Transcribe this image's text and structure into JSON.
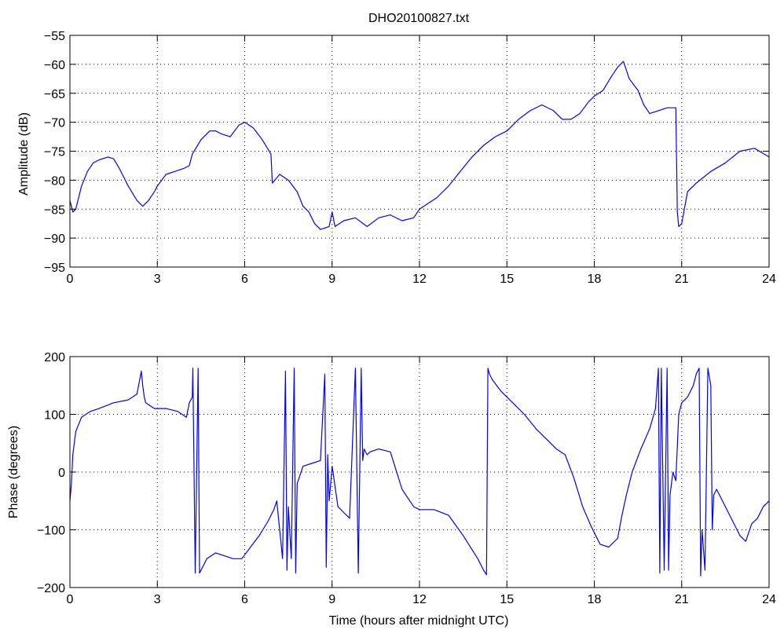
{
  "figure_title": "DHO20100827.txt",
  "chart_data": [
    {
      "type": "line",
      "title": "DHO20100827.txt",
      "xlabel": "",
      "ylabel": "Amplitude (dB)",
      "xlim": [
        0,
        24
      ],
      "ylim": [
        -95,
        -55
      ],
      "xticks": [
        0,
        3,
        6,
        9,
        12,
        15,
        18,
        21,
        24
      ],
      "yticks": [
        -95,
        -90,
        -85,
        -80,
        -75,
        -70,
        -65,
        -60,
        -55
      ],
      "grid": true,
      "line_color": "#0000ff",
      "series": [
        {
          "x": [
            0.0,
            0.1,
            0.2,
            0.4,
            0.6,
            0.8,
            1.0,
            1.3,
            1.5,
            1.7,
            2.0,
            2.3,
            2.5,
            2.7,
            2.9,
            3.0,
            3.3,
            3.6,
            3.9,
            4.1,
            4.2,
            4.5,
            4.8,
            5.0,
            5.2,
            5.5,
            5.8,
            6.0,
            6.3,
            6.6,
            6.9,
            6.95,
            7.2,
            7.5,
            7.8,
            8.0,
            8.2,
            8.4,
            8.6,
            8.9,
            9.0,
            9.1,
            9.4,
            9.8,
            10.2,
            10.6,
            11.0,
            11.4,
            11.8,
            12.0,
            12.3,
            12.6,
            13.0,
            13.4,
            13.8,
            14.2,
            14.6,
            15.0,
            15.4,
            15.8,
            16.2,
            16.6,
            16.9,
            17.2,
            17.5,
            17.8,
            18.0,
            18.3,
            18.6,
            18.8,
            18.9,
            19.0,
            19.2,
            19.5,
            19.7,
            19.9,
            20.2,
            20.5,
            20.8,
            20.85,
            20.9,
            21.0,
            21.2,
            21.5,
            22.0,
            22.5,
            23.0,
            23.5,
            24.0
          ],
          "values": [
            -83.5,
            -85.5,
            -85,
            -81,
            -78.5,
            -77,
            -76.5,
            -76,
            -76.3,
            -78,
            -81,
            -83.5,
            -84.5,
            -83.5,
            -82,
            -81,
            -79,
            -78.5,
            -78,
            -77.5,
            -75.5,
            -73,
            -71.5,
            -71.5,
            -72,
            -72.5,
            -70.5,
            -70,
            -71,
            -73,
            -75.5,
            -80.5,
            -79,
            -80,
            -82,
            -84.5,
            -85.5,
            -87.5,
            -88.5,
            -88,
            -85.5,
            -88,
            -87,
            -86.5,
            -88,
            -86.5,
            -86,
            -87,
            -86.5,
            -85,
            -84,
            -83,
            -81,
            -78.5,
            -76,
            -74,
            -72.5,
            -71.5,
            -69.5,
            -68,
            -67,
            -68,
            -69.5,
            -69.5,
            -68.5,
            -66.5,
            -65.5,
            -64.5,
            -62,
            -60.5,
            -60,
            -59.5,
            -62.5,
            -64.5,
            -67,
            -68.5,
            -68,
            -67.5,
            -67.5,
            -85.5,
            -88,
            -87.5,
            -82,
            -80.5,
            -78.5,
            -77,
            -75,
            -74.5,
            -76
          ]
        }
      ]
    },
    {
      "type": "line",
      "title": "",
      "xlabel": "Time (hours after midnight UTC)",
      "ylabel": "Phase (degrees)",
      "xlim": [
        0,
        24
      ],
      "ylim": [
        -200,
        200
      ],
      "xticks": [
        0,
        3,
        6,
        9,
        12,
        15,
        18,
        21,
        24
      ],
      "yticks": [
        -200,
        -100,
        0,
        100,
        200
      ],
      "grid": true,
      "line_color": "#0000ff",
      "series": [
        {
          "x": [
            0.0,
            0.05,
            0.1,
            0.2,
            0.4,
            0.7,
            1.0,
            1.5,
            2.0,
            2.3,
            2.45,
            2.5,
            2.55,
            2.6,
            2.9,
            3.3,
            3.7,
            4.0,
            4.1,
            4.2,
            4.22,
            4.3,
            4.4,
            4.45,
            4.5,
            4.7,
            5.0,
            5.3,
            5.6,
            5.9,
            6.2,
            6.5,
            6.8,
            7.0,
            7.1,
            7.3,
            7.4,
            7.45,
            7.5,
            7.6,
            7.7,
            7.75,
            7.8,
            8.0,
            8.3,
            8.6,
            8.75,
            8.8,
            8.85,
            8.9,
            9.0,
            9.2,
            9.4,
            9.6,
            9.8,
            9.9,
            10.0,
            10.05,
            10.1,
            10.2,
            10.3,
            10.6,
            11.0,
            11.4,
            11.6,
            11.8,
            12.0,
            12.5,
            13.0,
            13.5,
            14.0,
            14.2,
            14.3,
            14.35,
            14.4,
            14.5,
            14.8,
            15.2,
            15.6,
            16.0,
            16.4,
            16.7,
            17.0,
            17.3,
            17.6,
            17.9,
            18.2,
            18.5,
            18.8,
            18.95,
            19.1,
            19.3,
            19.6,
            19.9,
            20.1,
            20.2,
            20.25,
            20.3,
            20.4,
            20.5,
            20.55,
            20.6,
            20.7,
            20.8,
            20.9,
            21.0,
            21.2,
            21.4,
            21.5,
            21.6,
            21.65,
            21.7,
            21.8,
            21.9,
            22.0,
            22.05,
            22.1,
            22.2,
            22.4,
            22.6,
            22.8,
            23.0,
            23.2,
            23.4,
            23.6,
            23.8,
            24.0
          ],
          "values": [
            -50,
            -20,
            30,
            70,
            95,
            105,
            110,
            120,
            125,
            135,
            175,
            150,
            130,
            120,
            110,
            110,
            105,
            95,
            120,
            130,
            180,
            -175,
            180,
            -175,
            -170,
            -150,
            -140,
            -145,
            -150,
            -150,
            -130,
            -110,
            -85,
            -65,
            -50,
            -150,
            175,
            -170,
            -60,
            -150,
            180,
            -175,
            -20,
            10,
            15,
            20,
            170,
            -165,
            30,
            -50,
            10,
            -60,
            -70,
            -80,
            180,
            -175,
            180,
            20,
            40,
            30,
            35,
            40,
            35,
            -30,
            -45,
            -60,
            -65,
            -65,
            -75,
            -110,
            -150,
            -170,
            -178,
            180,
            170,
            160,
            140,
            120,
            100,
            75,
            55,
            40,
            30,
            -10,
            -60,
            -95,
            -125,
            -130,
            -115,
            -75,
            -40,
            0,
            40,
            75,
            110,
            180,
            -175,
            180,
            -170,
            180,
            -170,
            -40,
            0,
            -15,
            100,
            120,
            130,
            150,
            170,
            180,
            -180,
            -100,
            -170,
            180,
            150,
            -100,
            -40,
            -30,
            -50,
            -70,
            -90,
            -110,
            -120,
            -90,
            -80,
            -60,
            -50
          ]
        }
      ]
    }
  ]
}
